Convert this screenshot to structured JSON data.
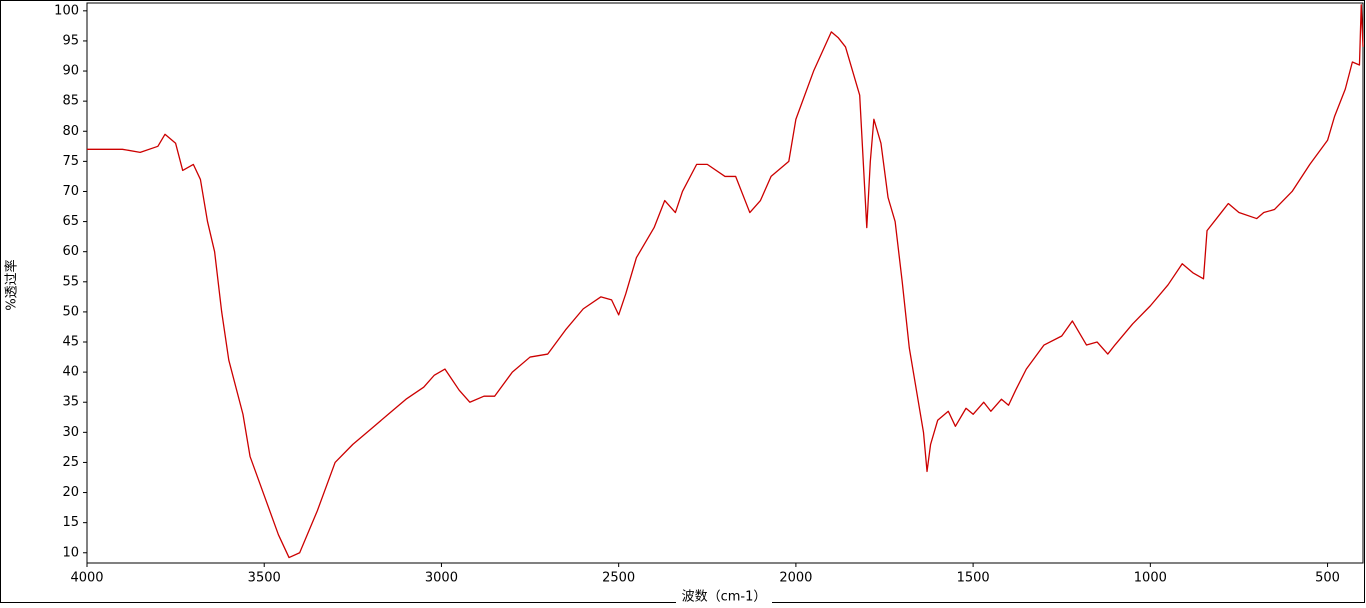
{
  "chart_data": {
    "type": "line",
    "xlabel": "波数（cm-1）",
    "ylabel": "%透过率",
    "color": "#cc0000",
    "xlim": [
      4000,
      400
    ],
    "ylim": [
      8.3,
      101.3
    ],
    "xticks": [
      4000,
      3500,
      3000,
      2500,
      2000,
      1500,
      1000,
      500
    ],
    "yticks": [
      10,
      15,
      20,
      25,
      30,
      35,
      40,
      45,
      50,
      55,
      60,
      65,
      70,
      75,
      80,
      85,
      90,
      95,
      100
    ],
    "x": [
      4000,
      3900,
      3850,
      3800,
      3780,
      3750,
      3730,
      3700,
      3680,
      3660,
      3640,
      3620,
      3600,
      3560,
      3540,
      3500,
      3460,
      3430,
      3400,
      3350,
      3300,
      3250,
      3200,
      3150,
      3100,
      3050,
      3020,
      2990,
      2950,
      2920,
      2880,
      2850,
      2800,
      2750,
      2700,
      2650,
      2600,
      2550,
      2520,
      2500,
      2480,
      2450,
      2400,
      2370,
      2340,
      2320,
      2280,
      2250,
      2200,
      2170,
      2130,
      2100,
      2070,
      2020,
      2000,
      1950,
      1900,
      1880,
      1860,
      1840,
      1820,
      1810,
      1800,
      1790,
      1780,
      1760,
      1740,
      1720,
      1700,
      1680,
      1660,
      1640,
      1630,
      1620,
      1600,
      1570,
      1550,
      1520,
      1500,
      1470,
      1450,
      1420,
      1400,
      1380,
      1350,
      1300,
      1250,
      1220,
      1180,
      1150,
      1120,
      1100,
      1050,
      1000,
      950,
      910,
      880,
      850,
      840,
      800,
      780,
      750,
      700,
      680,
      650,
      600,
      550,
      500,
      480,
      450,
      430,
      410,
      405,
      400
    ],
    "values": [
      77,
      77,
      76.5,
      77.5,
      79.5,
      78,
      73.5,
      74.5,
      72,
      65,
      60,
      50,
      42,
      33,
      26,
      19.5,
      13,
      9.2,
      10,
      17,
      25,
      28,
      30.5,
      33,
      35.5,
      37.5,
      39.5,
      40.5,
      37,
      35,
      36,
      36,
      40,
      42.5,
      43,
      47,
      50.5,
      52.5,
      52,
      49.5,
      53,
      59,
      64,
      68.5,
      66.5,
      70,
      74.5,
      74.5,
      72.5,
      72.5,
      66.5,
      68.5,
      72.5,
      75,
      82,
      90,
      96.5,
      95.5,
      94,
      90,
      86,
      75,
      64,
      75,
      82,
      78,
      69,
      65,
      55,
      44,
      37,
      30,
      23.5,
      28,
      32,
      33.5,
      31,
      34,
      33,
      35,
      33.5,
      35.5,
      34.5,
      37,
      40.5,
      44.5,
      46,
      48.5,
      44.5,
      45,
      43,
      44.5,
      48,
      51,
      54.5,
      58,
      56.5,
      55.5,
      63.5,
      66.5,
      68,
      66.5,
      65.5,
      66.5,
      67,
      70,
      74.5,
      78.5,
      82.5,
      87,
      91.5,
      91,
      101,
      94
    ]
  }
}
